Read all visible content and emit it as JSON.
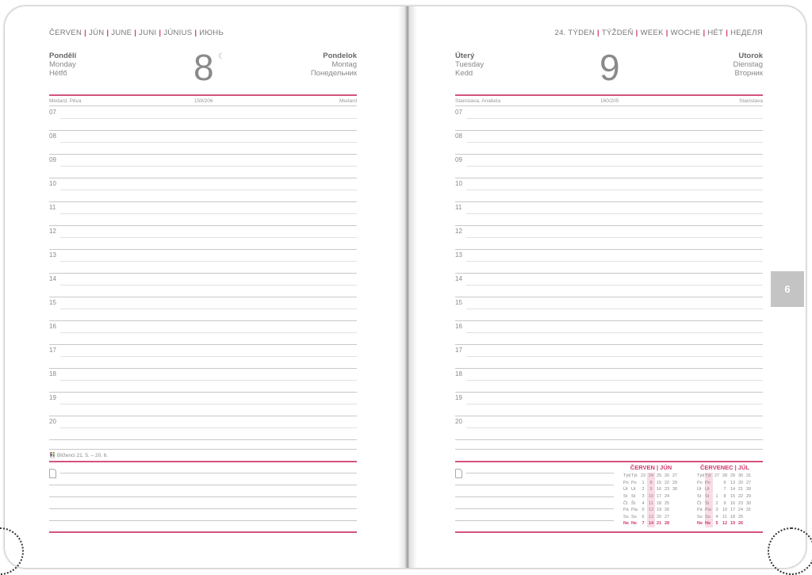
{
  "left": {
    "month_header": [
      "ČERVEN",
      "JÚN",
      "JUNE",
      "JUNI",
      "JÚNIUS",
      "ИЮНЬ"
    ],
    "day_names_left": [
      "Pondělí",
      "Monday",
      "Hétfő"
    ],
    "day_number": "8",
    "moon_icon": "☾",
    "day_names_right": [
      "Pondelok",
      "Montag",
      "Понедельник"
    ],
    "name_day_left": "Medard, Pěva",
    "day_of_year": "159/206",
    "name_day_right": "Medard",
    "zodiac": "Blíženci 21. 5. – 20. 6."
  },
  "right": {
    "week_header": [
      "24. TÝDEN",
      "TÝŽDEŇ",
      "WEEK",
      "WOCHE",
      "HÉT",
      "НЕДЕЛЯ"
    ],
    "day_names_left": [
      "Úterý",
      "Tuesday",
      "Kedd"
    ],
    "day_number": "9",
    "day_names_right": [
      "Utorok",
      "Dienstag",
      "Вторник"
    ],
    "name_day_left": "Stanislava, Anabela",
    "day_of_year": "160/205",
    "name_day_right": "Stanislava"
  },
  "hours": [
    "07",
    "08",
    "09",
    "10",
    "11",
    "12",
    "13",
    "14",
    "15",
    "16",
    "17",
    "18",
    "19",
    "20"
  ],
  "month_tab": "6",
  "colors": {
    "accent": "#d4547b",
    "tab": "#c4c4c4"
  },
  "mini_calendars": [
    {
      "title": "ČERVEN | JÚN",
      "week_label": [
        "Týd",
        "Týt"
      ],
      "weeks": [
        "23",
        "24",
        "25",
        "26",
        "27"
      ],
      "highlight_col": 1,
      "rows": [
        [
          "Po",
          "Po",
          "1",
          "8",
          "15",
          "22",
          "29"
        ],
        [
          "Út",
          "Ut",
          "2",
          "9",
          "16",
          "23",
          "30"
        ],
        [
          "St",
          "St",
          "3",
          "10",
          "17",
          "24",
          ""
        ],
        [
          "Čt",
          "Št",
          "4",
          "11",
          "18",
          "25",
          ""
        ],
        [
          "Pá",
          "Pia",
          "5",
          "12",
          "19",
          "26",
          ""
        ],
        [
          "So",
          "So",
          "6",
          "13",
          "20",
          "27",
          ""
        ],
        [
          "Ne",
          "Ne",
          "7",
          "14",
          "21",
          "28",
          ""
        ]
      ]
    },
    {
      "title": "ČERVENEC | JÚL",
      "week_label": [
        "Týd",
        "Týt"
      ],
      "weeks": [
        "27",
        "28",
        "29",
        "30",
        "31"
      ],
      "highlight_col": -1,
      "rows": [
        [
          "Po",
          "Po",
          "",
          "6",
          "13",
          "20",
          "27"
        ],
        [
          "Út",
          "Ut",
          "",
          "7",
          "14",
          "21",
          "28"
        ],
        [
          "St",
          "St",
          "1",
          "8",
          "15",
          "22",
          "29"
        ],
        [
          "Čt",
          "Št",
          "2",
          "9",
          "16",
          "23",
          "30"
        ],
        [
          "Pá",
          "Pia",
          "3",
          "10",
          "17",
          "24",
          "31"
        ],
        [
          "So",
          "So",
          "4",
          "11",
          "18",
          "25",
          ""
        ],
        [
          "Ne",
          "Ne",
          "5",
          "12",
          "19",
          "26",
          ""
        ]
      ]
    }
  ]
}
